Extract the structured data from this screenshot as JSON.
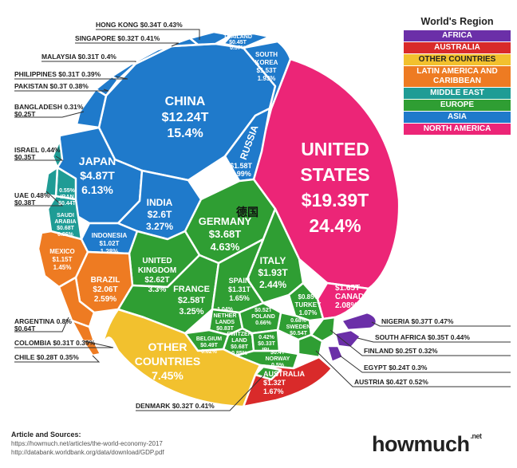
{
  "chart_data": {
    "type": "voronoi treemap",
    "title": "",
    "units": "USD trillions, share of world GDP (%)",
    "legend": {
      "title": "World's Region",
      "items": [
        {
          "name": "AFRICA",
          "color": "#6b2fa8"
        },
        {
          "name": "AUSTRALIA",
          "color": "#d92a2a"
        },
        {
          "name": "OTHER COUNTRIES",
          "color": "#f2c12e"
        },
        {
          "name": "LATIN AMERICA AND CARIBBEAN",
          "color": "#ee7b22"
        },
        {
          "name": "MIDDLE EAST",
          "color": "#1f9c95"
        },
        {
          "name": "EUROPE",
          "color": "#2f9e33"
        },
        {
          "name": "ASIA",
          "color": "#1f7acb"
        },
        {
          "name": "NORTH AMERICA",
          "color": "#ec2577"
        }
      ]
    },
    "cells": [
      {
        "name": "UNITED STATES",
        "value": "$19.39T",
        "percent": "24.4%",
        "region": "NORTH AMERICA"
      },
      {
        "name": "CANADA",
        "value": "$1.65T",
        "percent": "2.08%",
        "region": "NORTH AMERICA"
      },
      {
        "name": "CHINA",
        "value": "$12.24T",
        "percent": "15.4%",
        "region": "ASIA"
      },
      {
        "name": "JAPAN",
        "value": "$4.87T",
        "percent": "6.13%",
        "region": "ASIA"
      },
      {
        "name": "INDIA",
        "value": "$2.6T",
        "percent": "3.27%",
        "region": "ASIA"
      },
      {
        "name": "RUSSIA",
        "value": "$1.58T",
        "percent": "1.99%",
        "region": "ASIA"
      },
      {
        "name": "SOUTH KOREA",
        "value": "$1.53T",
        "percent": "1.93%",
        "region": "ASIA"
      },
      {
        "name": "INDONESIA",
        "value": "$1.02T",
        "percent": "1.28%",
        "region": "ASIA"
      },
      {
        "name": "THAILAND",
        "value": "$0.45T",
        "percent": "0.57%",
        "region": "ASIA"
      },
      {
        "name": "HONG KONG",
        "value": "$0.34T",
        "percent": "0.43%",
        "region": "ASIA"
      },
      {
        "name": "SINGAPORE",
        "value": "$0.32T",
        "percent": "0.41%",
        "region": "ASIA"
      },
      {
        "name": "MALAYSIA",
        "value": "$0.31T",
        "percent": "0.4%",
        "region": "ASIA"
      },
      {
        "name": "PHILIPPINES",
        "value": "$0.31T",
        "percent": "0.39%",
        "region": "ASIA"
      },
      {
        "name": "PAKISTAN",
        "value": "$0.3T",
        "percent": "0.38%",
        "region": "ASIA"
      },
      {
        "name": "BANGLADESH",
        "value": "$0.25T",
        "percent": "0.31%",
        "region": "ASIA"
      },
      {
        "name": "GERMANY",
        "value": "$3.68T",
        "percent": "4.63%",
        "region": "EUROPE"
      },
      {
        "name": "UNITED KINGDOM",
        "value": "$2.62T",
        "percent": "3.3%",
        "region": "EUROPE"
      },
      {
        "name": "FRANCE",
        "value": "$2.58T",
        "percent": "3.25%",
        "region": "EUROPE"
      },
      {
        "name": "ITALY",
        "value": "$1.93T",
        "percent": "2.44%",
        "region": "EUROPE"
      },
      {
        "name": "SPAIN",
        "value": "$1.31T",
        "percent": "1.65%",
        "region": "EUROPE"
      },
      {
        "name": "NETHERLANDS",
        "value": "$0.83T",
        "percent": "1.04%",
        "region": "EUROPE"
      },
      {
        "name": "TURKEY",
        "value": "$0.85T",
        "percent": "1.07%",
        "region": "EUROPE"
      },
      {
        "name": "SWITZERLAND",
        "value": "$0.68T",
        "percent": "0.85%",
        "region": "EUROPE"
      },
      {
        "name": "SWEDEN",
        "value": "$0.54T",
        "percent": "0.68%",
        "region": "EUROPE"
      },
      {
        "name": "POLAND",
        "value": "$0.52T",
        "percent": "0.66%",
        "region": "EUROPE"
      },
      {
        "name": "BELGIUM",
        "value": "$0.49T",
        "percent": "0.62%",
        "region": "EUROPE"
      },
      {
        "name": "NORWAY",
        "value": "$0.4T",
        "percent": "0.5%",
        "region": "EUROPE"
      },
      {
        "name": "IRL",
        "value": "$0.33T",
        "percent": "0.42%",
        "region": "EUROPE"
      },
      {
        "name": "AUSTRIA",
        "value": "$0.42T",
        "percent": "0.52%",
        "region": "EUROPE"
      },
      {
        "name": "DENMARK",
        "value": "$0.32T",
        "percent": "0.41%",
        "region": "EUROPE"
      },
      {
        "name": "FINLAND",
        "value": "$0.25T",
        "percent": "0.32%",
        "region": "EUROPE"
      },
      {
        "name": "SAUDI ARABIA",
        "value": "$0.68T",
        "percent": "0.86%",
        "region": "MIDDLE EAST"
      },
      {
        "name": "IRAN",
        "value": "$0.44T",
        "percent": "0.55%",
        "region": "MIDDLE EAST"
      },
      {
        "name": "UAE",
        "value": "$0.38T",
        "percent": "0.48%",
        "region": "MIDDLE EAST"
      },
      {
        "name": "ISRAEL",
        "value": "$0.35T",
        "percent": "0.44%",
        "region": "MIDDLE EAST"
      },
      {
        "name": "BRAZIL",
        "value": "$2.06T",
        "percent": "2.59%",
        "region": "LATIN AMERICA AND CARIBBEAN"
      },
      {
        "name": "MEXICO",
        "value": "$1.15T",
        "percent": "1.45%",
        "region": "LATIN AMERICA AND CARIBBEAN"
      },
      {
        "name": "ARGENTINA",
        "value": "$0.64T",
        "percent": "0.8%",
        "region": "LATIN AMERICA AND CARIBBEAN"
      },
      {
        "name": "COLOMBIA",
        "value": "$0.31T",
        "percent": "0.39%",
        "region": "LATIN AMERICA AND CARIBBEAN"
      },
      {
        "name": "CHILE",
        "value": "$0.28T",
        "percent": "0.35%",
        "region": "LATIN AMERICA AND CARIBBEAN"
      },
      {
        "name": "AUSTRALIA",
        "value": "$1.32T",
        "percent": "1.67%",
        "region": "AUSTRALIA"
      },
      {
        "name": "NIGERIA",
        "value": "$0.37T",
        "percent": "0.47%",
        "region": "AFRICA"
      },
      {
        "name": "SOUTH AFRICA",
        "value": "$0.35T",
        "percent": "0.44%",
        "region": "AFRICA"
      },
      {
        "name": "EGYPT",
        "value": "$0.24T",
        "percent": "0.3%",
        "region": "AFRICA"
      },
      {
        "name": "OTHER COUNTRIES",
        "value": "",
        "percent": "7.45%",
        "region": "OTHER COUNTRIES"
      }
    ],
    "annotation": "德国"
  },
  "sources": {
    "heading": "Article and Sources:",
    "lines": [
      "https://howmuch.net/articles/the-world-economy-2017",
      "http://databank.worldbank.org/data/download/GDP.pdf"
    ]
  },
  "logo": {
    "text": "howmuch",
    "suffix": ".net"
  }
}
